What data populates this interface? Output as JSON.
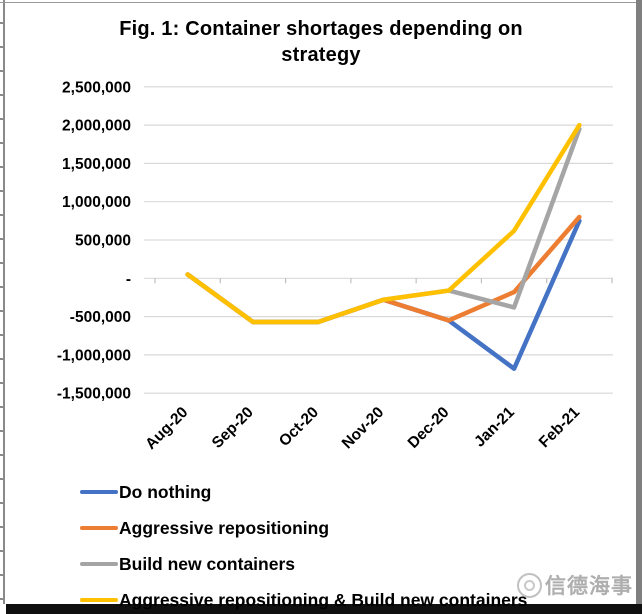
{
  "chart_data": {
    "type": "line",
    "title": "Fig. 1: Container shortages depending on strategy",
    "categories": [
      "Aug-20",
      "Sep-20",
      "Oct-20",
      "Nov-20",
      "Dec-20",
      "Jan-21",
      "Feb-21"
    ],
    "series": [
      {
        "name": "Do nothing",
        "color": "#4472C4",
        "values": [
          50000,
          -570000,
          -570000,
          -280000,
          -550000,
          -1180000,
          750000
        ]
      },
      {
        "name": "Aggressive repositioning",
        "color": "#ED7D31",
        "values": [
          50000,
          -570000,
          -570000,
          -280000,
          -550000,
          -180000,
          800000
        ]
      },
      {
        "name": "Build new containers",
        "color": "#A5A5A5",
        "values": [
          50000,
          -570000,
          -570000,
          -280000,
          -160000,
          -380000,
          1950000
        ]
      },
      {
        "name": "Aggressive repositioning & Build new containers",
        "color": "#FFC000",
        "values": [
          50000,
          -570000,
          -570000,
          -280000,
          -160000,
          620000,
          2000000
        ]
      }
    ],
    "ylim": [
      -1500000,
      2500000
    ],
    "ytick_step": 500000,
    "ytick_labels": [
      "2,500,000",
      "2,000,000",
      "1,500,000",
      "1,000,000",
      "500,000",
      "-",
      "-500,000",
      "-1,000,000",
      "-1,500,000"
    ],
    "grid": true,
    "legend_position": "bottom-left",
    "colors": {
      "gridline": "#D9D9D9",
      "axis_tick": "#BFBFBF",
      "text": "#000000"
    }
  },
  "watermark": {
    "text": "信德海事"
  }
}
